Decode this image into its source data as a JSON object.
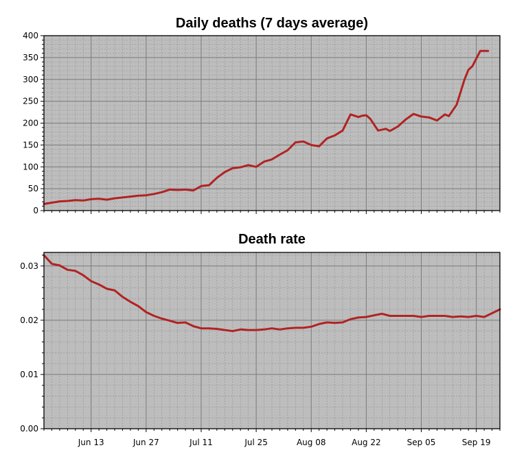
{
  "chart_data": [
    {
      "type": "line",
      "title": "Daily deaths (7 days average)",
      "xlabel": "",
      "ylabel": "",
      "xlim": [
        "2020-06-01",
        "2020-09-25"
      ],
      "ylim": [
        0,
        400
      ],
      "y_ticks": [
        "0",
        "50",
        "100",
        "150",
        "200",
        "250",
        "300",
        "350",
        "400"
      ],
      "grid": true,
      "line_color": "#b22222",
      "background": "#bdbdbd",
      "series": [
        {
          "x": [
            "2020-06-01",
            "2020-06-03",
            "2020-06-05",
            "2020-06-07",
            "2020-06-09",
            "2020-06-11",
            "2020-06-13",
            "2020-06-15",
            "2020-06-17",
            "2020-06-19",
            "2020-06-21",
            "2020-06-23",
            "2020-06-25",
            "2020-06-27",
            "2020-06-29",
            "2020-07-01",
            "2020-07-03",
            "2020-07-05",
            "2020-07-07",
            "2020-07-09",
            "2020-07-11",
            "2020-07-13",
            "2020-07-15",
            "2020-07-17",
            "2020-07-19",
            "2020-07-21",
            "2020-07-23",
            "2020-07-25",
            "2020-07-27",
            "2020-07-29",
            "2020-07-31",
            "2020-08-02",
            "2020-08-04",
            "2020-08-06",
            "2020-08-08",
            "2020-08-10",
            "2020-08-12",
            "2020-08-14",
            "2020-08-16",
            "2020-08-18",
            "2020-08-20",
            "2020-08-21",
            "2020-08-22",
            "2020-08-23",
            "2020-08-25",
            "2020-08-27",
            "2020-08-28",
            "2020-08-29",
            "2020-08-30",
            "2020-09-01",
            "2020-09-03",
            "2020-09-05",
            "2020-09-07",
            "2020-09-09",
            "2020-09-11",
            "2020-09-12",
            "2020-09-14",
            "2020-09-16",
            "2020-09-17",
            "2020-09-18",
            "2020-09-20",
            "2020-09-21",
            "2020-09-22"
          ],
          "y": [
            15,
            18,
            21,
            22,
            24,
            23,
            26,
            27,
            25,
            28,
            30,
            32,
            34,
            35,
            38,
            42,
            48,
            47,
            48,
            46,
            56,
            58,
            75,
            88,
            97,
            99,
            104,
            100,
            112,
            117,
            128,
            138,
            156,
            158,
            150,
            147,
            165,
            172,
            183,
            220,
            214,
            217,
            218,
            210,
            183,
            187,
            182,
            187,
            192,
            208,
            221,
            215,
            213,
            206,
            220,
            216,
            242,
            300,
            322,
            330,
            365,
            365,
            365
          ]
        }
      ]
    },
    {
      "type": "line",
      "title": "Death rate",
      "xlabel": "",
      "ylabel": "",
      "xlim": [
        "2020-06-01",
        "2020-09-25"
      ],
      "ylim": [
        0,
        0.0325
      ],
      "y_ticks": [
        "0.00",
        "0.01",
        "0.02",
        "0.03"
      ],
      "x_ticks": [
        "Jun 13",
        "Jun 27",
        "Jul 11",
        "Jul 25",
        "Aug 08",
        "Aug 22",
        "Sep 05",
        "Sep 19"
      ],
      "grid": true,
      "line_color": "#b22222",
      "background": "#bdbdbd",
      "series": [
        {
          "x": [
            "2020-06-01",
            "2020-06-03",
            "2020-06-05",
            "2020-06-07",
            "2020-06-09",
            "2020-06-11",
            "2020-06-13",
            "2020-06-15",
            "2020-06-17",
            "2020-06-19",
            "2020-06-21",
            "2020-06-23",
            "2020-06-25",
            "2020-06-27",
            "2020-06-29",
            "2020-07-01",
            "2020-07-03",
            "2020-07-05",
            "2020-07-07",
            "2020-07-09",
            "2020-07-11",
            "2020-07-13",
            "2020-07-15",
            "2020-07-17",
            "2020-07-19",
            "2020-07-21",
            "2020-07-23",
            "2020-07-25",
            "2020-07-27",
            "2020-07-29",
            "2020-07-31",
            "2020-08-02",
            "2020-08-04",
            "2020-08-06",
            "2020-08-08",
            "2020-08-10",
            "2020-08-12",
            "2020-08-14",
            "2020-08-16",
            "2020-08-18",
            "2020-08-20",
            "2020-08-22",
            "2020-08-24",
            "2020-08-26",
            "2020-08-28",
            "2020-08-30",
            "2020-09-01",
            "2020-09-03",
            "2020-09-05",
            "2020-09-07",
            "2020-09-09",
            "2020-09-11",
            "2020-09-13",
            "2020-09-15",
            "2020-09-17",
            "2020-09-19",
            "2020-09-21",
            "2020-09-23",
            "2020-09-25"
          ],
          "y": [
            0.032,
            0.0304,
            0.0301,
            0.0293,
            0.0291,
            0.0283,
            0.0272,
            0.0266,
            0.0258,
            0.0255,
            0.0243,
            0.0234,
            0.0226,
            0.0215,
            0.0208,
            0.0203,
            0.0199,
            0.0195,
            0.0196,
            0.0189,
            0.0185,
            0.0185,
            0.0184,
            0.0182,
            0.018,
            0.0183,
            0.0182,
            0.0182,
            0.0183,
            0.0185,
            0.0183,
            0.0185,
            0.0186,
            0.0186,
            0.0188,
            0.0193,
            0.0196,
            0.0195,
            0.0196,
            0.0202,
            0.0205,
            0.0206,
            0.0209,
            0.0212,
            0.0208,
            0.0208,
            0.0208,
            0.0208,
            0.0206,
            0.0208,
            0.0208,
            0.0208,
            0.0206,
            0.0207,
            0.0206,
            0.0208,
            0.0206,
            0.0213,
            0.022
          ]
        }
      ]
    }
  ]
}
